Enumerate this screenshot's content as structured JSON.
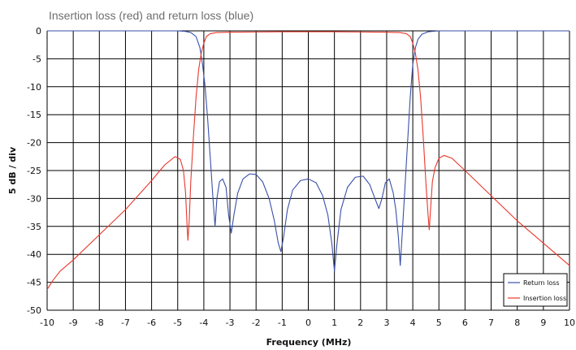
{
  "chart_data": {
    "type": "line",
    "title": "Insertion loss (red) and return loss (blue)",
    "xlabel": "Frequency (MHz)",
    "ylabel": "5 dB / div",
    "xlim": [
      -10,
      10
    ],
    "ylim": [
      -50,
      0
    ],
    "x_ticks": [
      "-10",
      "-9",
      "-8",
      "-7",
      "-6",
      "-5",
      "-4",
      "-3",
      "-2",
      "-1",
      "0",
      "1",
      "2",
      "3",
      "4",
      "5",
      "6",
      "7",
      "8",
      "9",
      "10"
    ],
    "y_ticks": [
      "0",
      "-5",
      "-10",
      "-15",
      "-20",
      "-25",
      "-30",
      "-35",
      "-40",
      "-45",
      "-50"
    ],
    "grid": true,
    "legend_position": "bottom-right",
    "series": [
      {
        "name": "Return loss",
        "color": "#3a4fa8",
        "points": [
          [
            -10,
            0
          ],
          [
            -5.0,
            0
          ],
          [
            -4.7,
            -0.1
          ],
          [
            -4.5,
            -0.3
          ],
          [
            -4.3,
            -1.0
          ],
          [
            -4.15,
            -3.0
          ],
          [
            -4.05,
            -6
          ],
          [
            -3.95,
            -10
          ],
          [
            -3.85,
            -16
          ],
          [
            -3.75,
            -23
          ],
          [
            -3.65,
            -30
          ],
          [
            -3.57,
            -35.0
          ],
          [
            -3.5,
            -30
          ],
          [
            -3.4,
            -27
          ],
          [
            -3.28,
            -26.5
          ],
          [
            -3.15,
            -28
          ],
          [
            -3.05,
            -33
          ],
          [
            -2.95,
            -36.2
          ],
          [
            -2.85,
            -33
          ],
          [
            -2.7,
            -29
          ],
          [
            -2.5,
            -26.5
          ],
          [
            -2.25,
            -25.6
          ],
          [
            -2.0,
            -25.7
          ],
          [
            -1.75,
            -27
          ],
          [
            -1.5,
            -30
          ],
          [
            -1.3,
            -34
          ],
          [
            -1.15,
            -38
          ],
          [
            -1.05,
            -39.5
          ],
          [
            -0.95,
            -37
          ],
          [
            -0.8,
            -32
          ],
          [
            -0.6,
            -28.5
          ],
          [
            -0.3,
            -26.8
          ],
          [
            0.0,
            -26.5
          ],
          [
            0.3,
            -27.2
          ],
          [
            0.55,
            -29.5
          ],
          [
            0.75,
            -33
          ],
          [
            0.9,
            -38
          ],
          [
            1.0,
            -43
          ],
          [
            1.1,
            -38
          ],
          [
            1.25,
            -32
          ],
          [
            1.5,
            -28
          ],
          [
            1.8,
            -26.2
          ],
          [
            2.1,
            -26
          ],
          [
            2.35,
            -27.5
          ],
          [
            2.55,
            -30
          ],
          [
            2.7,
            -31.8
          ],
          [
            2.82,
            -30
          ],
          [
            2.95,
            -27.2
          ],
          [
            3.1,
            -26.5
          ],
          [
            3.25,
            -29
          ],
          [
            3.35,
            -32
          ],
          [
            3.45,
            -37
          ],
          [
            3.52,
            -42
          ],
          [
            3.6,
            -36
          ],
          [
            3.7,
            -28
          ],
          [
            3.8,
            -20
          ],
          [
            3.9,
            -12
          ],
          [
            4.0,
            -6
          ],
          [
            4.1,
            -3
          ],
          [
            4.2,
            -1.5
          ],
          [
            4.35,
            -0.6
          ],
          [
            4.6,
            -0.15
          ],
          [
            5.0,
            0
          ],
          [
            10,
            0
          ]
        ]
      },
      {
        "name": "Insertion loss",
        "color": "#e8382c",
        "points": [
          [
            -10,
            -46.3
          ],
          [
            -9.8,
            -44.8
          ],
          [
            -9.5,
            -43
          ],
          [
            -9.0,
            -41
          ],
          [
            -8.0,
            -36.5
          ],
          [
            -7.0,
            -32
          ],
          [
            -6.0,
            -26.8
          ],
          [
            -5.5,
            -24
          ],
          [
            -5.1,
            -22.5
          ],
          [
            -4.9,
            -23
          ],
          [
            -4.78,
            -25
          ],
          [
            -4.7,
            -29
          ],
          [
            -4.64,
            -35
          ],
          [
            -4.61,
            -37.5
          ],
          [
            -4.56,
            -34
          ],
          [
            -4.5,
            -27
          ],
          [
            -4.4,
            -19
          ],
          [
            -4.3,
            -12
          ],
          [
            -4.2,
            -7
          ],
          [
            -4.1,
            -4
          ],
          [
            -4.0,
            -2.2
          ],
          [
            -3.9,
            -1.0
          ],
          [
            -3.75,
            -0.5
          ],
          [
            -3.5,
            -0.3
          ],
          [
            -3.0,
            -0.25
          ],
          [
            -2.0,
            -0.2
          ],
          [
            -1.0,
            -0.15
          ],
          [
            0.0,
            -0.15
          ],
          [
            1.0,
            -0.15
          ],
          [
            2.0,
            -0.2
          ],
          [
            3.0,
            -0.25
          ],
          [
            3.5,
            -0.3
          ],
          [
            3.75,
            -0.5
          ],
          [
            3.9,
            -1.0
          ],
          [
            4.0,
            -2.2
          ],
          [
            4.1,
            -4
          ],
          [
            4.2,
            -7
          ],
          [
            4.3,
            -12
          ],
          [
            4.4,
            -19
          ],
          [
            4.5,
            -27
          ],
          [
            4.57,
            -32
          ],
          [
            4.63,
            -35.6
          ],
          [
            4.68,
            -32
          ],
          [
            4.75,
            -27
          ],
          [
            4.85,
            -24.5
          ],
          [
            5.0,
            -22.8
          ],
          [
            5.2,
            -22.3
          ],
          [
            5.5,
            -22.8
          ],
          [
            6.0,
            -25
          ],
          [
            7.0,
            -29.5
          ],
          [
            8.0,
            -34
          ],
          [
            9.0,
            -38
          ],
          [
            9.5,
            -40
          ],
          [
            10.0,
            -42
          ]
        ]
      }
    ]
  }
}
